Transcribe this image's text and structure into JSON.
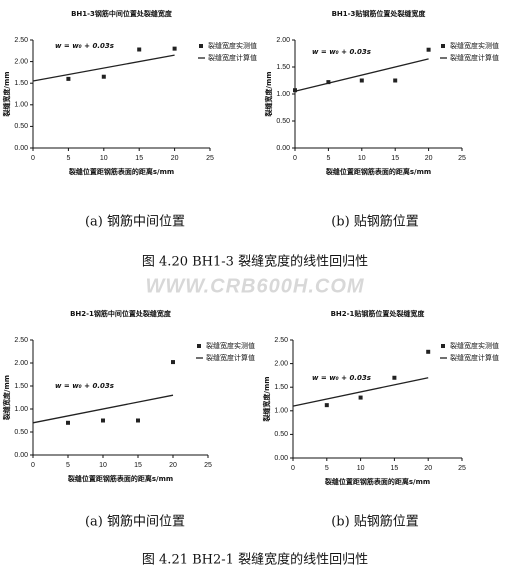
{
  "chart_data": [
    {
      "type": "scatter",
      "title": "BH1-3钢筋中间位置处裂缝宽度",
      "x_label": "裂缝位置距钢筋表面的距离s/mm",
      "y_label": "裂缝宽度/mm",
      "annotation": "w = w₀ + 0.03s",
      "subcaption": "(a)   钢筋中间位置",
      "xlim": [
        0,
        25
      ],
      "xticks": [
        0,
        5,
        10,
        15,
        20,
        25
      ],
      "ylim": [
        0,
        2.5
      ],
      "yticks": [
        {
          "value": 0,
          "label": "0.00"
        },
        {
          "value": 0.5,
          "label": "0.50"
        },
        {
          "value": 1,
          "label": "1.00"
        },
        {
          "value": 1.5,
          "label": "1.50"
        },
        {
          "value": 2,
          "label": "2.00"
        },
        {
          "value": 2.5,
          "label": "2.50"
        }
      ],
      "series": [
        {
          "name": "裂缝宽度实测值",
          "type": "scatter",
          "color": "#222222",
          "x": [
            5,
            10,
            15,
            20
          ],
          "values": [
            1.6,
            1.65,
            2.28,
            2.3
          ]
        },
        {
          "name": "裂缝宽度计算值",
          "type": "line",
          "color": "#222222",
          "x": [
            0,
            20
          ],
          "values": [
            1.55,
            2.15
          ]
        }
      ]
    },
    {
      "type": "scatter",
      "title": "BH1-3贴钢筋位置处裂缝宽度",
      "x_label": "裂缝位置距钢筋表面的距离s/mm",
      "y_label": "裂缝宽度/mm",
      "annotation": "w = w₀ + 0.03s",
      "subcaption": "(b)   贴钢筋位置",
      "xlim": [
        0,
        25
      ],
      "xticks": [
        0,
        5,
        10,
        15,
        20,
        25
      ],
      "ylim": [
        0,
        2
      ],
      "yticks": [
        {
          "value": 0,
          "label": "0.00"
        },
        {
          "value": 0.5,
          "label": "0.50"
        },
        {
          "value": 1,
          "label": "1.00"
        },
        {
          "value": 1.5,
          "label": "1.50"
        },
        {
          "value": 2,
          "label": "2.00"
        }
      ],
      "series": [
        {
          "name": "裂缝宽度实测值",
          "type": "scatter",
          "color": "#222222",
          "x": [
            0,
            5,
            10,
            15,
            20
          ],
          "values": [
            1.07,
            1.22,
            1.25,
            1.25,
            1.82
          ]
        },
        {
          "name": "裂缝宽度计算值",
          "type": "line",
          "color": "#222222",
          "x": [
            0,
            20
          ],
          "values": [
            1.05,
            1.65
          ]
        }
      ]
    },
    {
      "type": "scatter",
      "title": "BH2-1钢筋中间位置处裂缝宽度",
      "x_label": "裂缝位置距钢筋表面的距离s/mm",
      "y_label": "裂缝宽度/mm",
      "annotation": "w = w₀ + 0.03s",
      "subcaption": "(a)   钢筋中间位置",
      "xlim": [
        0,
        25
      ],
      "xticks": [
        0,
        5,
        10,
        15,
        20,
        25
      ],
      "ylim": [
        0,
        2.5
      ],
      "yticks": [
        {
          "value": 0,
          "label": "0.00"
        },
        {
          "value": 0.5,
          "label": "0.50"
        },
        {
          "value": 1,
          "label": "1.00"
        },
        {
          "value": 1.5,
          "label": "1.50"
        },
        {
          "value": 2,
          "label": "2.00"
        },
        {
          "value": 2.5,
          "label": "2.50"
        }
      ],
      "series": [
        {
          "name": "裂缝宽度实测值",
          "type": "scatter",
          "color": "#222222",
          "x": [
            5,
            10,
            15,
            20
          ],
          "values": [
            0.7,
            0.75,
            0.75,
            2.02
          ]
        },
        {
          "name": "裂缝宽度计算值",
          "type": "line",
          "color": "#222222",
          "x": [
            0,
            20
          ],
          "values": [
            0.7,
            1.3
          ]
        }
      ]
    },
    {
      "type": "scatter",
      "title": "BH2-1贴钢筋位置处裂缝宽度",
      "x_label": "裂缝位置距钢筋表面的距离s/mm",
      "y_label": "裂缝宽度/mm",
      "annotation": "w = w₀ + 0.03s",
      "subcaption": "(b)   贴钢筋位置",
      "xlim": [
        0,
        25
      ],
      "xticks": [
        0,
        5,
        10,
        15,
        20,
        25
      ],
      "ylim": [
        0,
        2.5
      ],
      "yticks": [
        {
          "value": 0,
          "label": "0.00"
        },
        {
          "value": 0.5,
          "label": "0.50"
        },
        {
          "value": 1,
          "label": "1.00"
        },
        {
          "value": 1.5,
          "label": "1.50"
        },
        {
          "value": 2,
          "label": "2.00"
        },
        {
          "value": 2.5,
          "label": "2.50"
        }
      ],
      "series": [
        {
          "name": "裂缝宽度实测值",
          "type": "scatter",
          "color": "#222222",
          "x": [
            5,
            10,
            15,
            20
          ],
          "values": [
            1.12,
            1.28,
            1.7,
            2.25
          ]
        },
        {
          "name": "裂缝宽度计算值",
          "type": "line",
          "color": "#222222",
          "x": [
            0,
            20
          ],
          "values": [
            1.1,
            1.7
          ]
        }
      ]
    }
  ],
  "figure_captions": [
    "图 4.20   BH1-3 裂缝宽度的线性回归性",
    "图 4.21   BH2-1 裂缝宽度的线性回归性"
  ],
  "watermark": "WWW.CRB600H.COM"
}
